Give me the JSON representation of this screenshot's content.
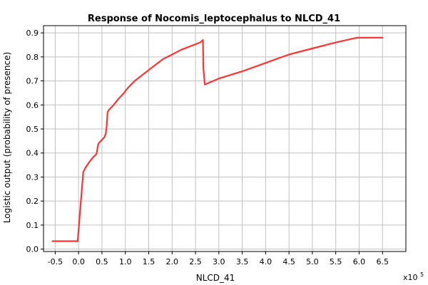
{
  "chart_data": {
    "type": "line",
    "title": "Response of Nocomis_leptocephalus to NLCD_41",
    "xlabel": "NLCD_41",
    "ylabel": "Logistic output (probability of presence)",
    "x_scale_base": "x10",
    "x_scale_exponent": "5",
    "xlim": [
      -0.75,
      7.0
    ],
    "ylim": [
      -0.01,
      0.93
    ],
    "grid": true,
    "x_ticks": [
      -0.5,
      0.0,
      0.5,
      1.0,
      1.5,
      2.0,
      2.5,
      3.0,
      3.5,
      4.0,
      4.5,
      5.0,
      5.5,
      6.0,
      6.5
    ],
    "x_tick_labels": [
      "-0.5",
      "0.0",
      "0.5",
      "1.0",
      "1.5",
      "2.0",
      "2.5",
      "3.0",
      "3.5",
      "4.0",
      "4.5",
      "5.0",
      "5.5",
      "6.0",
      "6.5"
    ],
    "y_ticks": [
      0.0,
      0.1,
      0.2,
      0.3,
      0.4,
      0.5,
      0.6,
      0.7,
      0.8,
      0.9
    ],
    "y_tick_labels": [
      "0.0",
      "0.1",
      "0.2",
      "0.3",
      "0.4",
      "0.5",
      "0.6",
      "0.7",
      "0.8",
      "0.9"
    ],
    "series": [
      {
        "color": "#ff3333",
        "x": [
          -0.56,
          -0.02,
          0.0,
          0.02,
          0.05,
          0.1,
          0.15,
          0.22,
          0.3,
          0.38,
          0.42,
          0.43,
          0.45,
          0.5,
          0.55,
          0.58,
          0.6,
          0.62,
          0.65,
          0.68,
          0.75,
          0.85,
          0.95,
          1.05,
          1.2,
          1.4,
          1.6,
          1.8,
          2.0,
          2.2,
          2.4,
          2.6,
          2.66,
          2.67,
          2.7,
          3.0,
          3.5,
          4.0,
          4.5,
          5.0,
          5.5,
          5.95,
          6.0,
          6.5
        ],
        "y": [
          0.033,
          0.033,
          0.08,
          0.13,
          0.2,
          0.32,
          0.34,
          0.36,
          0.38,
          0.395,
          0.435,
          0.44,
          0.445,
          0.455,
          0.465,
          0.48,
          0.51,
          0.57,
          0.58,
          0.585,
          0.6,
          0.625,
          0.645,
          0.67,
          0.7,
          0.73,
          0.76,
          0.79,
          0.81,
          0.83,
          0.845,
          0.86,
          0.87,
          0.75,
          0.685,
          0.71,
          0.74,
          0.775,
          0.81,
          0.835,
          0.86,
          0.88,
          0.88,
          0.88
        ]
      }
    ]
  }
}
